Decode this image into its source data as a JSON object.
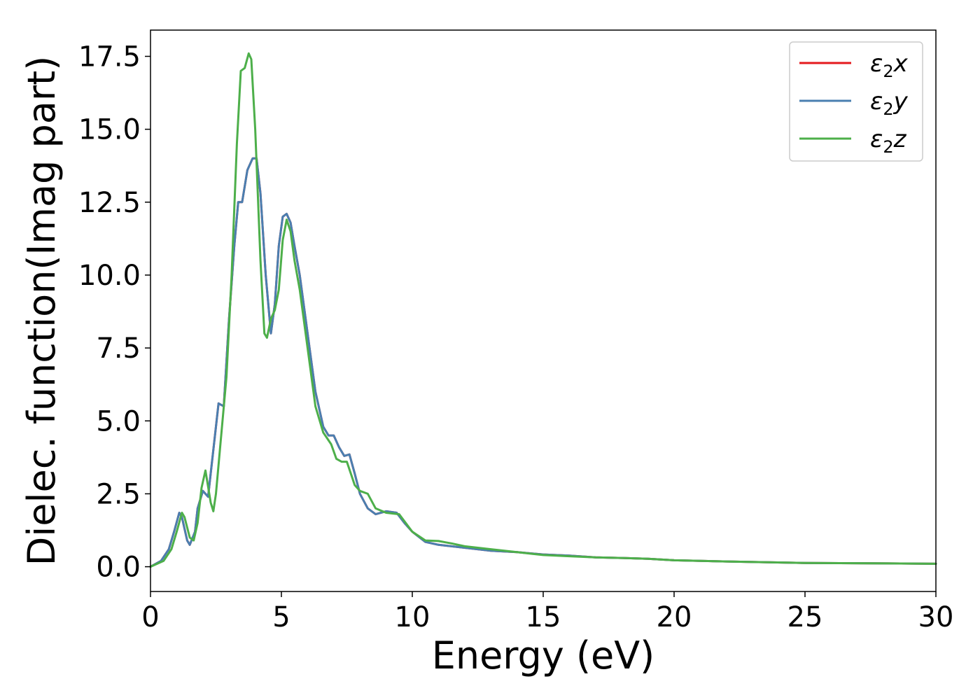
{
  "chart_data": {
    "type": "line",
    "title": "",
    "xlabel": "Energy (eV)",
    "ylabel": "Dielec. function(Imag part)",
    "xlim": [
      0,
      30
    ],
    "ylim": [
      -0.85,
      18.4
    ],
    "xticks": [
      0,
      5,
      10,
      15,
      20,
      25,
      30
    ],
    "xtick_labels": [
      "0",
      "5",
      "10",
      "15",
      "20",
      "25",
      "30"
    ],
    "yticks": [
      0.0,
      2.5,
      5.0,
      7.5,
      10.0,
      12.5,
      15.0,
      17.5
    ],
    "ytick_labels": [
      "0.0",
      "2.5",
      "5.0",
      "7.5",
      "10.0",
      "12.5",
      "15.0",
      "17.5"
    ],
    "grid": false,
    "legend_position": "top-right",
    "series": [
      {
        "name": "ε2x",
        "legend_base": "ε",
        "legend_sub": "2",
        "legend_suffix": "x",
        "color": "#e41a1c",
        "x": [
          0,
          0.4,
          0.7,
          0.9,
          1.1,
          1.2,
          1.4,
          1.5,
          1.7,
          1.8,
          2.0,
          2.2,
          2.3,
          2.5,
          2.6,
          2.8,
          3.0,
          3.2,
          3.35,
          3.5,
          3.7,
          3.9,
          4.05,
          4.2,
          4.4,
          4.6,
          4.75,
          4.9,
          5.05,
          5.2,
          5.35,
          5.5,
          5.7,
          6.0,
          6.3,
          6.6,
          6.8,
          7.0,
          7.2,
          7.4,
          7.6,
          7.8,
          8.0,
          8.3,
          8.6,
          9.0,
          9.4,
          9.7,
          10.0,
          10.5,
          11.0,
          12.0,
          13.0,
          14.0,
          15.0,
          16.0,
          17.0,
          18.0,
          19.0,
          20.0,
          22.0,
          25.0,
          27.0,
          30.0
        ],
        "values": [
          0.0,
          0.2,
          0.6,
          1.2,
          1.85,
          1.7,
          0.9,
          0.75,
          1.2,
          2.0,
          2.6,
          2.4,
          3.2,
          4.8,
          5.6,
          5.5,
          8.5,
          11.0,
          12.5,
          12.5,
          13.6,
          14.0,
          14.0,
          12.8,
          10.0,
          8.0,
          9.0,
          11.0,
          12.0,
          12.1,
          11.8,
          11.0,
          10.0,
          8.0,
          6.0,
          4.8,
          4.5,
          4.5,
          4.1,
          3.8,
          3.85,
          3.2,
          2.5,
          2.0,
          1.8,
          1.9,
          1.85,
          1.5,
          1.2,
          0.85,
          0.75,
          0.65,
          0.55,
          0.5,
          0.42,
          0.38,
          0.32,
          0.3,
          0.27,
          0.22,
          0.18,
          0.13,
          0.12,
          0.1
        ]
      },
      {
        "name": "ε2y",
        "legend_base": "ε",
        "legend_sub": "2",
        "legend_suffix": "y",
        "color": "#4a7fb0",
        "x": [
          0,
          0.4,
          0.7,
          0.9,
          1.1,
          1.2,
          1.4,
          1.5,
          1.7,
          1.8,
          2.0,
          2.2,
          2.3,
          2.5,
          2.6,
          2.8,
          3.0,
          3.2,
          3.35,
          3.5,
          3.7,
          3.9,
          4.05,
          4.2,
          4.4,
          4.6,
          4.75,
          4.9,
          5.05,
          5.2,
          5.35,
          5.5,
          5.7,
          6.0,
          6.3,
          6.6,
          6.8,
          7.0,
          7.2,
          7.4,
          7.6,
          7.8,
          8.0,
          8.3,
          8.6,
          9.0,
          9.4,
          9.7,
          10.0,
          10.5,
          11.0,
          12.0,
          13.0,
          14.0,
          15.0,
          16.0,
          17.0,
          18.0,
          19.0,
          20.0,
          22.0,
          25.0,
          27.0,
          30.0
        ],
        "values": [
          0.0,
          0.2,
          0.6,
          1.2,
          1.85,
          1.7,
          0.9,
          0.75,
          1.2,
          2.0,
          2.6,
          2.4,
          3.2,
          4.8,
          5.6,
          5.5,
          8.5,
          11.0,
          12.5,
          12.5,
          13.6,
          14.0,
          14.0,
          12.8,
          10.0,
          8.0,
          9.0,
          11.0,
          12.0,
          12.1,
          11.8,
          11.0,
          10.0,
          8.0,
          6.0,
          4.8,
          4.5,
          4.5,
          4.1,
          3.8,
          3.85,
          3.2,
          2.5,
          2.0,
          1.8,
          1.9,
          1.85,
          1.5,
          1.2,
          0.85,
          0.75,
          0.65,
          0.55,
          0.5,
          0.42,
          0.38,
          0.32,
          0.3,
          0.27,
          0.22,
          0.18,
          0.13,
          0.12,
          0.1
        ]
      },
      {
        "name": "ε2z",
        "legend_base": "ε",
        "legend_sub": "2",
        "legend_suffix": "z",
        "color": "#4daf4a",
        "x": [
          0,
          0.5,
          0.8,
          1.0,
          1.2,
          1.3,
          1.5,
          1.65,
          1.8,
          1.95,
          2.1,
          2.3,
          2.4,
          2.5,
          2.7,
          2.9,
          3.1,
          3.3,
          3.45,
          3.6,
          3.75,
          3.85,
          4.0,
          4.2,
          4.35,
          4.45,
          4.6,
          4.75,
          4.9,
          5.05,
          5.2,
          5.35,
          5.5,
          5.7,
          6.0,
          6.3,
          6.6,
          6.9,
          7.1,
          7.3,
          7.5,
          7.8,
          8.0,
          8.3,
          8.6,
          9.0,
          9.5,
          10.0,
          10.5,
          11.0,
          11.5,
          12.0,
          12.5,
          13.0,
          14.0,
          15.0,
          16.0,
          17.0,
          18.0,
          19.0,
          20.0,
          22.0,
          25.0,
          27.0,
          30.0
        ],
        "values": [
          0.0,
          0.2,
          0.6,
          1.2,
          1.85,
          1.7,
          1.0,
          0.9,
          1.5,
          2.7,
          3.3,
          2.2,
          1.9,
          2.5,
          4.5,
          6.5,
          10.0,
          14.5,
          17.0,
          17.1,
          17.6,
          17.4,
          15.0,
          10.5,
          8.0,
          7.85,
          8.5,
          8.8,
          9.5,
          11.2,
          11.9,
          11.5,
          10.5,
          9.5,
          7.5,
          5.5,
          4.6,
          4.2,
          3.7,
          3.6,
          3.6,
          2.8,
          2.6,
          2.5,
          2.0,
          1.85,
          1.8,
          1.2,
          0.9,
          0.88,
          0.8,
          0.7,
          0.65,
          0.6,
          0.5,
          0.4,
          0.36,
          0.32,
          0.3,
          0.27,
          0.22,
          0.18,
          0.13,
          0.12,
          0.1
        ]
      }
    ]
  }
}
